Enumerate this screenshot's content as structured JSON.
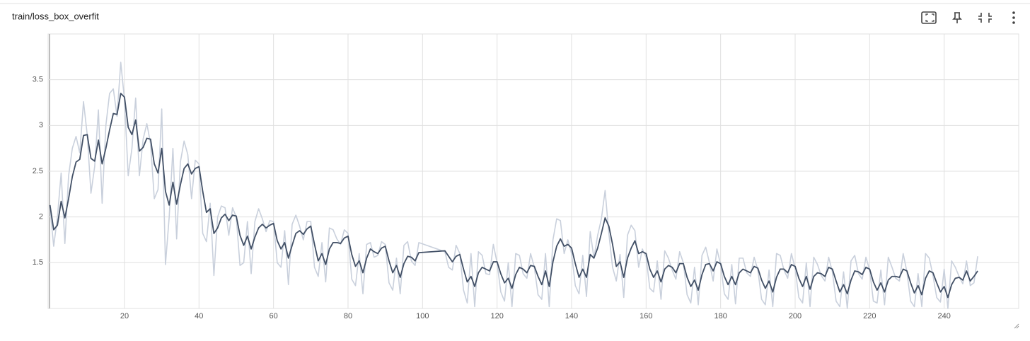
{
  "chart_data": {
    "type": "line",
    "title": "train/loss_box_overfit",
    "x": [
      0,
      1,
      2,
      3,
      4,
      5,
      6,
      7,
      8,
      9,
      10,
      11,
      12,
      13,
      14,
      15,
      16,
      17,
      18,
      19,
      20,
      21,
      22,
      23,
      24,
      25,
      26,
      27,
      28,
      29,
      30,
      31,
      32,
      33,
      34,
      35,
      36,
      37,
      38,
      39,
      40,
      41,
      42,
      43,
      44,
      45,
      46,
      47,
      48,
      49,
      50,
      51,
      52,
      53,
      54,
      55,
      56,
      57,
      58,
      59,
      60,
      61,
      62,
      63,
      64,
      65,
      66,
      67,
      68,
      69,
      70,
      71,
      72,
      73,
      74,
      75,
      76,
      77,
      78,
      79,
      80,
      81,
      82,
      83,
      84,
      85,
      86,
      87,
      88,
      89,
      90,
      91,
      92,
      93,
      94,
      95,
      96,
      97,
      98,
      99,
      106,
      107,
      108,
      109,
      110,
      111,
      112,
      113,
      114,
      115,
      116,
      117,
      118,
      119,
      120,
      121,
      122,
      123,
      124,
      125,
      126,
      127,
      128,
      129,
      130,
      131,
      132,
      133,
      134,
      135,
      136,
      137,
      138,
      139,
      140,
      141,
      142,
      143,
      144,
      145,
      146,
      147,
      148,
      149,
      150,
      151,
      152,
      153,
      154,
      155,
      156,
      157,
      158,
      159,
      160,
      161,
      162,
      163,
      164,
      165,
      166,
      167,
      168,
      169,
      170,
      171,
      172,
      173,
      174,
      175,
      176,
      177,
      178,
      179,
      180,
      181,
      182,
      183,
      184,
      185,
      186,
      187,
      188,
      189,
      190,
      191,
      192,
      193,
      194,
      195,
      196,
      197,
      198,
      199,
      200,
      201,
      202,
      203,
      204,
      205,
      206,
      207,
      208,
      209,
      210,
      211,
      212,
      213,
      214,
      215,
      216,
      217,
      218,
      219,
      220,
      221,
      222,
      223,
      224,
      225,
      226,
      227,
      228,
      229,
      230,
      231,
      232,
      233,
      234,
      235,
      236,
      237,
      238,
      239,
      240,
      241,
      242,
      243,
      244,
      245,
      246,
      247,
      248,
      249
    ],
    "series": [
      {
        "color": "#c9d0dc",
        "values": [
          2.1,
          1.68,
          2.0,
          2.48,
          1.71,
          2.45,
          2.75,
          2.88,
          2.7,
          3.26,
          2.9,
          2.26,
          2.55,
          3.17,
          2.15,
          3.0,
          3.35,
          3.4,
          3.1,
          3.69,
          3.28,
          2.45,
          2.75,
          3.3,
          2.45,
          2.85,
          3.02,
          2.8,
          2.2,
          2.3,
          3.18,
          1.48,
          2.0,
          2.75,
          1.76,
          2.6,
          2.83,
          2.68,
          2.2,
          2.62,
          2.58,
          1.82,
          1.73,
          2.15,
          1.36,
          2.0,
          2.12,
          2.1,
          1.8,
          2.1,
          2.0,
          1.47,
          1.5,
          1.95,
          1.38,
          1.95,
          2.09,
          1.98,
          1.84,
          1.96,
          1.95,
          1.5,
          1.45,
          1.85,
          1.26,
          1.92,
          2.02,
          1.9,
          1.75,
          1.95,
          1.95,
          1.45,
          1.35,
          1.72,
          1.29,
          1.88,
          1.86,
          1.76,
          1.7,
          1.86,
          1.82,
          1.32,
          1.25,
          1.6,
          1.16,
          1.7,
          1.72,
          1.56,
          1.58,
          1.73,
          1.7,
          1.28,
          1.2,
          1.55,
          1.16,
          1.69,
          1.73,
          1.52,
          1.47,
          1.72,
          1.62,
          1.45,
          1.42,
          1.69,
          1.6,
          1.2,
          1.06,
          1.6,
          1.02,
          1.62,
          1.58,
          1.38,
          1.37,
          1.7,
          1.5,
          1.18,
          1.08,
          1.5,
          1.02,
          1.6,
          1.58,
          1.38,
          1.33,
          1.6,
          1.45,
          1.15,
          1.1,
          1.6,
          1.02,
          1.75,
          1.98,
          1.96,
          1.6,
          1.75,
          1.6,
          1.25,
          1.16,
          1.58,
          1.13,
          1.84,
          1.55,
          1.8,
          1.98,
          2.29,
          1.82,
          1.45,
          1.3,
          1.59,
          1.12,
          1.8,
          1.91,
          1.85,
          1.45,
          1.65,
          1.56,
          1.22,
          1.18,
          1.52,
          1.1,
          1.63,
          1.55,
          1.42,
          1.32,
          1.62,
          1.5,
          1.15,
          1.06,
          1.45,
          1.04,
          1.58,
          1.67,
          1.5,
          1.3,
          1.65,
          1.48,
          1.16,
          1.1,
          1.48,
          1.05,
          1.55,
          1.55,
          1.39,
          1.35,
          1.56,
          1.42,
          1.1,
          1.04,
          1.42,
          1.02,
          1.6,
          1.58,
          1.42,
          1.33,
          1.6,
          1.44,
          1.12,
          1.06,
          1.5,
          1.02,
          1.56,
          1.48,
          1.36,
          1.3,
          1.56,
          1.4,
          1.08,
          1.02,
          1.4,
          1.0,
          1.52,
          1.58,
          1.38,
          1.32,
          1.56,
          1.42,
          1.08,
          1.06,
          1.42,
          1.04,
          1.56,
          1.45,
          1.33,
          1.3,
          1.6,
          1.4,
          1.08,
          1.02,
          1.38,
          1.02,
          1.6,
          1.55,
          1.36,
          1.12,
          1.07,
          1.43,
          1.0,
          1.52,
          1.45,
          1.35,
          1.27,
          1.52,
          1.25,
          1.28,
          1.57
        ]
      },
      {
        "color": "#425066",
        "values": [
          2.13,
          1.86,
          1.91,
          2.17,
          1.99,
          2.2,
          2.44,
          2.6,
          2.63,
          2.89,
          2.9,
          2.64,
          2.61,
          2.84,
          2.58,
          2.75,
          2.95,
          3.13,
          3.12,
          3.35,
          3.31,
          2.98,
          2.9,
          3.06,
          2.72,
          2.76,
          2.86,
          2.85,
          2.58,
          2.48,
          2.75,
          2.28,
          2.13,
          2.38,
          2.14,
          2.35,
          2.53,
          2.58,
          2.47,
          2.53,
          2.55,
          2.28,
          2.05,
          2.09,
          1.82,
          1.88,
          1.99,
          2.03,
          1.96,
          2.02,
          2.01,
          1.8,
          1.69,
          1.79,
          1.65,
          1.78,
          1.88,
          1.92,
          1.88,
          1.91,
          1.93,
          1.74,
          1.65,
          1.72,
          1.55,
          1.69,
          1.82,
          1.85,
          1.81,
          1.87,
          1.9,
          1.7,
          1.52,
          1.6,
          1.48,
          1.65,
          1.72,
          1.72,
          1.71,
          1.77,
          1.79,
          1.59,
          1.46,
          1.52,
          1.39,
          1.55,
          1.65,
          1.62,
          1.6,
          1.66,
          1.68,
          1.52,
          1.39,
          1.47,
          1.34,
          1.49,
          1.57,
          1.56,
          1.52,
          1.61,
          1.63,
          1.57,
          1.51,
          1.57,
          1.59,
          1.43,
          1.29,
          1.35,
          1.24,
          1.39,
          1.45,
          1.43,
          1.41,
          1.51,
          1.51,
          1.38,
          1.28,
          1.33,
          1.22,
          1.37,
          1.45,
          1.43,
          1.39,
          1.47,
          1.46,
          1.35,
          1.26,
          1.41,
          1.24,
          1.51,
          1.68,
          1.76,
          1.68,
          1.7,
          1.66,
          1.49,
          1.34,
          1.43,
          1.34,
          1.59,
          1.55,
          1.66,
          1.82,
          1.99,
          1.9,
          1.7,
          1.46,
          1.51,
          1.34,
          1.55,
          1.66,
          1.74,
          1.6,
          1.62,
          1.6,
          1.43,
          1.34,
          1.41,
          1.29,
          1.43,
          1.47,
          1.45,
          1.39,
          1.49,
          1.49,
          1.34,
          1.24,
          1.31,
          1.2,
          1.37,
          1.48,
          1.49,
          1.41,
          1.51,
          1.49,
          1.35,
          1.26,
          1.35,
          1.26,
          1.39,
          1.43,
          1.41,
          1.39,
          1.46,
          1.44,
          1.31,
          1.22,
          1.3,
          1.18,
          1.34,
          1.43,
          1.43,
          1.39,
          1.48,
          1.46,
          1.33,
          1.24,
          1.35,
          1.21,
          1.35,
          1.39,
          1.38,
          1.35,
          1.45,
          1.43,
          1.3,
          1.18,
          1.26,
          1.16,
          1.31,
          1.41,
          1.4,
          1.37,
          1.45,
          1.43,
          1.29,
          1.2,
          1.28,
          1.18,
          1.31,
          1.35,
          1.35,
          1.34,
          1.43,
          1.41,
          1.28,
          1.17,
          1.25,
          1.15,
          1.33,
          1.41,
          1.39,
          1.28,
          1.18,
          1.24,
          1.12,
          1.26,
          1.33,
          1.34,
          1.31,
          1.41,
          1.3,
          1.35,
          1.41
        ]
      }
    ],
    "xlim": [
      -0.5,
      260
    ],
    "ylim": [
      1.0,
      4.0
    ],
    "xticks": [
      20,
      40,
      60,
      80,
      100,
      120,
      140,
      160,
      180,
      200,
      220,
      240
    ],
    "yticks": [
      1.5,
      2,
      2.5,
      3,
      3.5
    ],
    "grid": true
  }
}
